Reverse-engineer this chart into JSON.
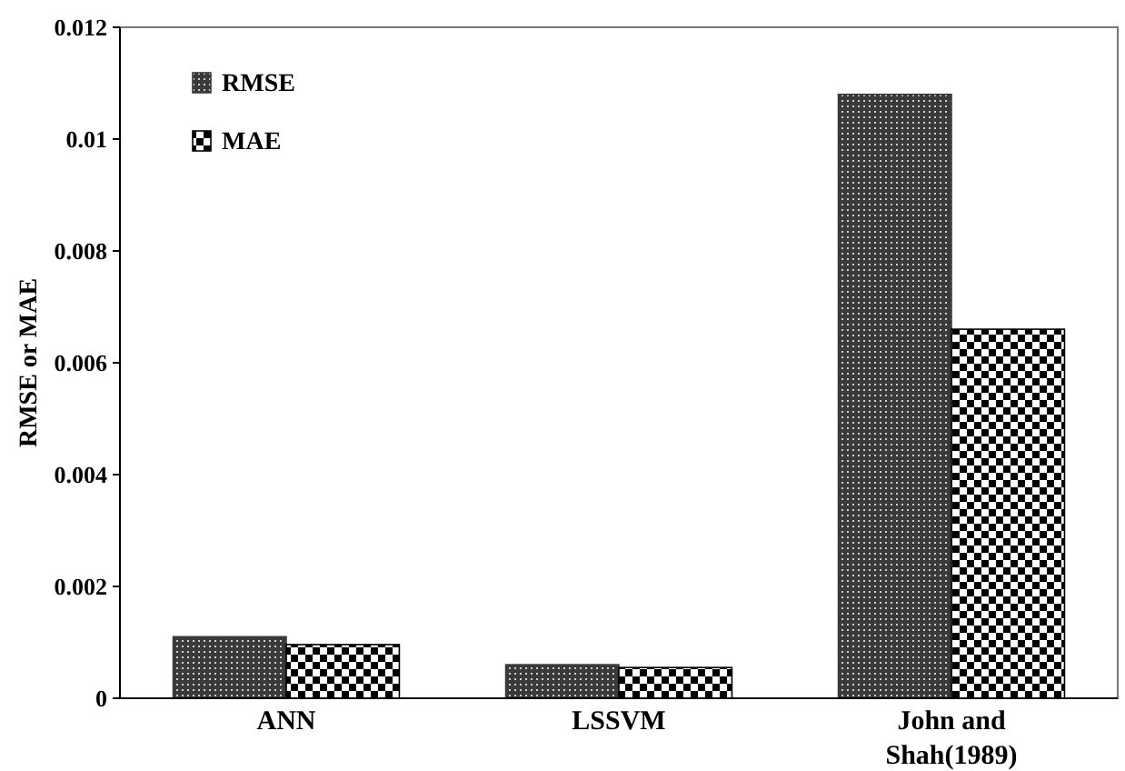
{
  "chart_data": {
    "type": "bar",
    "ylabel": "RMSE or MAE",
    "categories": [
      "ANN",
      "LSSVM",
      "John and Shah(1989)"
    ],
    "series": [
      {
        "name": "RMSE",
        "color": "#3a3a3a",
        "values": [
          0.0011,
          0.0006,
          0.0108
        ]
      },
      {
        "name": "MAE",
        "color": "#000000",
        "values": [
          0.00096,
          0.00055,
          0.0066
        ]
      }
    ],
    "ylim": [
      0,
      0.012
    ],
    "yticks": [
      0,
      0.002,
      0.004,
      0.006,
      0.008,
      0.01,
      0.012
    ],
    "grid": false,
    "legend": "top left"
  }
}
